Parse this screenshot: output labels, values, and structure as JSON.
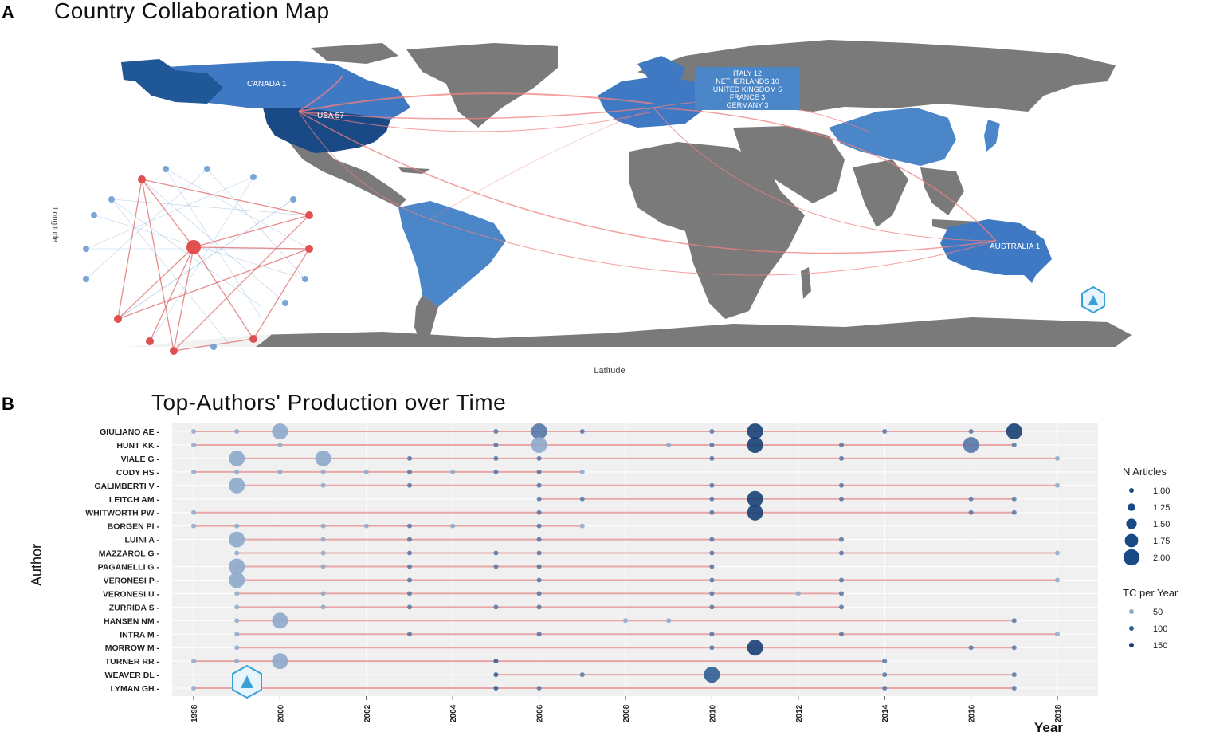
{
  "panelA": {
    "letter": "A",
    "title": "Country Collaboration Map",
    "xlabel": "Latitude",
    "ylabel": "Longitude",
    "labels": {
      "canada": "CANADA 1",
      "usa": "USA 57",
      "europe": [
        "ITALY 12",
        "NETHERLANDS 10",
        "UNITED KINGDOM 6",
        "FRANCE 3",
        "GERMANY 3"
      ],
      "australia": "AUSTRALIA 1"
    },
    "colors": {
      "land": "#7a7a7a",
      "collab": "#4a86c8",
      "usa": "#1f4e8c",
      "links": "#f08080"
    }
  },
  "panelB": {
    "letter": "B",
    "title": "Top-Authors' Production over Time"
  },
  "chart_data": {
    "type": "scatter",
    "title": "Top-Authors' Production over Time",
    "xlabel": "Year",
    "ylabel": "Author",
    "xlim": [
      1998,
      2018
    ],
    "xticks": [
      1998,
      2000,
      2002,
      2004,
      2006,
      2008,
      2010,
      2012,
      2014,
      2016,
      2018
    ],
    "legend": {
      "size_title": "N Articles",
      "size_values": [
        "1.00",
        "1.25",
        "1.50",
        "1.75",
        "2.00"
      ],
      "color_title": "TC per Year",
      "color_values": [
        "50",
        "100",
        "150"
      ],
      "placement": "right"
    },
    "authors": [
      {
        "name": "GIULIANO AE",
        "start": 1998,
        "end": 2017,
        "points": [
          [
            1998,
            1,
            30
          ],
          [
            1999,
            1,
            30
          ],
          [
            2000,
            2,
            30
          ],
          [
            2005,
            1,
            80
          ],
          [
            2006,
            2,
            60
          ],
          [
            2007,
            1,
            60
          ],
          [
            2010,
            1,
            80
          ],
          [
            2011,
            2,
            170
          ],
          [
            2014,
            1,
            80
          ],
          [
            2016,
            1,
            60
          ],
          [
            2017,
            2,
            160
          ]
        ]
      },
      {
        "name": "HUNT KK",
        "start": 1998,
        "end": 2017,
        "points": [
          [
            1998,
            1,
            30
          ],
          [
            2000,
            1,
            30
          ],
          [
            2005,
            1,
            80
          ],
          [
            2006,
            2,
            40
          ],
          [
            2009,
            1,
            30
          ],
          [
            2010,
            1,
            80
          ],
          [
            2011,
            2,
            170
          ],
          [
            2013,
            1,
            80
          ],
          [
            2016,
            2,
            60
          ],
          [
            2017,
            1,
            80
          ]
        ]
      },
      {
        "name": "VIALE G",
        "start": 1999,
        "end": 2018,
        "points": [
          [
            1999,
            2,
            30
          ],
          [
            2001,
            2,
            30
          ],
          [
            2003,
            1,
            80
          ],
          [
            2005,
            1,
            60
          ],
          [
            2006,
            1,
            60
          ],
          [
            2010,
            1,
            80
          ],
          [
            2013,
            1,
            80
          ],
          [
            2018,
            1,
            30
          ]
        ]
      },
      {
        "name": "CODY HS",
        "start": 1998,
        "end": 2007,
        "points": [
          [
            1998,
            1,
            30
          ],
          [
            1999,
            1,
            30
          ],
          [
            2000,
            1,
            30
          ],
          [
            2001,
            1,
            30
          ],
          [
            2002,
            1,
            30
          ],
          [
            2003,
            1,
            60
          ],
          [
            2004,
            1,
            30
          ],
          [
            2005,
            1,
            60
          ],
          [
            2006,
            1,
            60
          ],
          [
            2007,
            1,
            30
          ]
        ]
      },
      {
        "name": "GALIMBERTI V",
        "start": 1999,
        "end": 2018,
        "points": [
          [
            1999,
            2,
            30
          ],
          [
            2001,
            1,
            30
          ],
          [
            2003,
            1,
            80
          ],
          [
            2006,
            1,
            60
          ],
          [
            2010,
            1,
            80
          ],
          [
            2013,
            1,
            80
          ],
          [
            2018,
            1,
            30
          ]
        ]
      },
      {
        "name": "LEITCH AM",
        "start": 2006,
        "end": 2017,
        "points": [
          [
            2006,
            1,
            60
          ],
          [
            2007,
            1,
            60
          ],
          [
            2010,
            1,
            80
          ],
          [
            2011,
            2,
            170
          ],
          [
            2013,
            1,
            80
          ],
          [
            2016,
            1,
            60
          ],
          [
            2017,
            1,
            80
          ]
        ]
      },
      {
        "name": "WHITWORTH PW",
        "start": 1998,
        "end": 2017,
        "points": [
          [
            1998,
            1,
            30
          ],
          [
            2006,
            1,
            60
          ],
          [
            2010,
            1,
            80
          ],
          [
            2011,
            2,
            170
          ],
          [
            2016,
            1,
            60
          ],
          [
            2017,
            1,
            80
          ]
        ]
      },
      {
        "name": "BORGEN PI",
        "start": 1998,
        "end": 2007,
        "points": [
          [
            1998,
            1,
            30
          ],
          [
            1999,
            1,
            30
          ],
          [
            2001,
            1,
            30
          ],
          [
            2002,
            1,
            30
          ],
          [
            2003,
            1,
            60
          ],
          [
            2004,
            1,
            30
          ],
          [
            2006,
            1,
            60
          ],
          [
            2007,
            1,
            30
          ]
        ]
      },
      {
        "name": "LUINI A",
        "start": 1999,
        "end": 2013,
        "points": [
          [
            1999,
            2,
            30
          ],
          [
            2001,
            1,
            30
          ],
          [
            2003,
            1,
            80
          ],
          [
            2006,
            1,
            60
          ],
          [
            2010,
            1,
            80
          ],
          [
            2013,
            1,
            80
          ]
        ]
      },
      {
        "name": "MAZZAROL G",
        "start": 1999,
        "end": 2018,
        "points": [
          [
            1999,
            1,
            30
          ],
          [
            2001,
            1,
            30
          ],
          [
            2003,
            1,
            80
          ],
          [
            2005,
            1,
            60
          ],
          [
            2006,
            1,
            60
          ],
          [
            2010,
            1,
            80
          ],
          [
            2013,
            1,
            80
          ],
          [
            2018,
            1,
            30
          ]
        ]
      },
      {
        "name": "PAGANELLI G",
        "start": 1999,
        "end": 2010,
        "points": [
          [
            1999,
            2,
            30
          ],
          [
            2001,
            1,
            30
          ],
          [
            2003,
            1,
            80
          ],
          [
            2005,
            1,
            60
          ],
          [
            2006,
            1,
            60
          ],
          [
            2010,
            1,
            80
          ]
        ]
      },
      {
        "name": "VERONESI P",
        "start": 1999,
        "end": 2018,
        "points": [
          [
            1999,
            2,
            30
          ],
          [
            2003,
            1,
            80
          ],
          [
            2006,
            1,
            60
          ],
          [
            2010,
            1,
            80
          ],
          [
            2013,
            1,
            80
          ],
          [
            2018,
            1,
            30
          ]
        ]
      },
      {
        "name": "VERONESI U",
        "start": 1999,
        "end": 2013,
        "points": [
          [
            1999,
            1,
            30
          ],
          [
            2001,
            1,
            30
          ],
          [
            2003,
            1,
            80
          ],
          [
            2006,
            1,
            60
          ],
          [
            2010,
            1,
            80
          ],
          [
            2012,
            1,
            30
          ],
          [
            2013,
            1,
            80
          ]
        ]
      },
      {
        "name": "ZURRIDA S",
        "start": 1999,
        "end": 2013,
        "points": [
          [
            1999,
            1,
            30
          ],
          [
            2001,
            1,
            30
          ],
          [
            2003,
            1,
            80
          ],
          [
            2005,
            1,
            60
          ],
          [
            2006,
            1,
            60
          ],
          [
            2010,
            1,
            80
          ],
          [
            2013,
            1,
            80
          ]
        ]
      },
      {
        "name": "HANSEN NM",
        "start": 1999,
        "end": 2017,
        "points": [
          [
            1999,
            1,
            30
          ],
          [
            2000,
            2,
            30
          ],
          [
            2008,
            1,
            30
          ],
          [
            2009,
            1,
            30
          ],
          [
            2017,
            1,
            80
          ]
        ]
      },
      {
        "name": "INTRA M",
        "start": 1999,
        "end": 2018,
        "points": [
          [
            1999,
            1,
            30
          ],
          [
            2003,
            1,
            80
          ],
          [
            2006,
            1,
            60
          ],
          [
            2010,
            1,
            80
          ],
          [
            2013,
            1,
            80
          ],
          [
            2018,
            1,
            30
          ]
        ]
      },
      {
        "name": "MORROW M",
        "start": 1999,
        "end": 2017,
        "points": [
          [
            1999,
            1,
            30
          ],
          [
            2010,
            1,
            80
          ],
          [
            2011,
            2,
            170
          ],
          [
            2016,
            1,
            60
          ],
          [
            2017,
            1,
            80
          ]
        ]
      },
      {
        "name": "TURNER RR",
        "start": 1998,
        "end": 2014,
        "points": [
          [
            1998,
            1,
            30
          ],
          [
            1999,
            1,
            30
          ],
          [
            2000,
            2,
            30
          ],
          [
            2005,
            1,
            100
          ],
          [
            2014,
            1,
            80
          ]
        ]
      },
      {
        "name": "WEAVER DL",
        "start": 2005,
        "end": 2017,
        "points": [
          [
            2005,
            1,
            100
          ],
          [
            2007,
            1,
            60
          ],
          [
            2010,
            2,
            120
          ],
          [
            2014,
            1,
            80
          ],
          [
            2017,
            1,
            60
          ]
        ]
      },
      {
        "name": "LYMAN GH",
        "start": 1998,
        "end": 2017,
        "points": [
          [
            1998,
            1,
            30
          ],
          [
            2005,
            1,
            100
          ],
          [
            2006,
            1,
            60
          ],
          [
            2014,
            1,
            80
          ],
          [
            2017,
            1,
            60
          ]
        ]
      }
    ]
  }
}
